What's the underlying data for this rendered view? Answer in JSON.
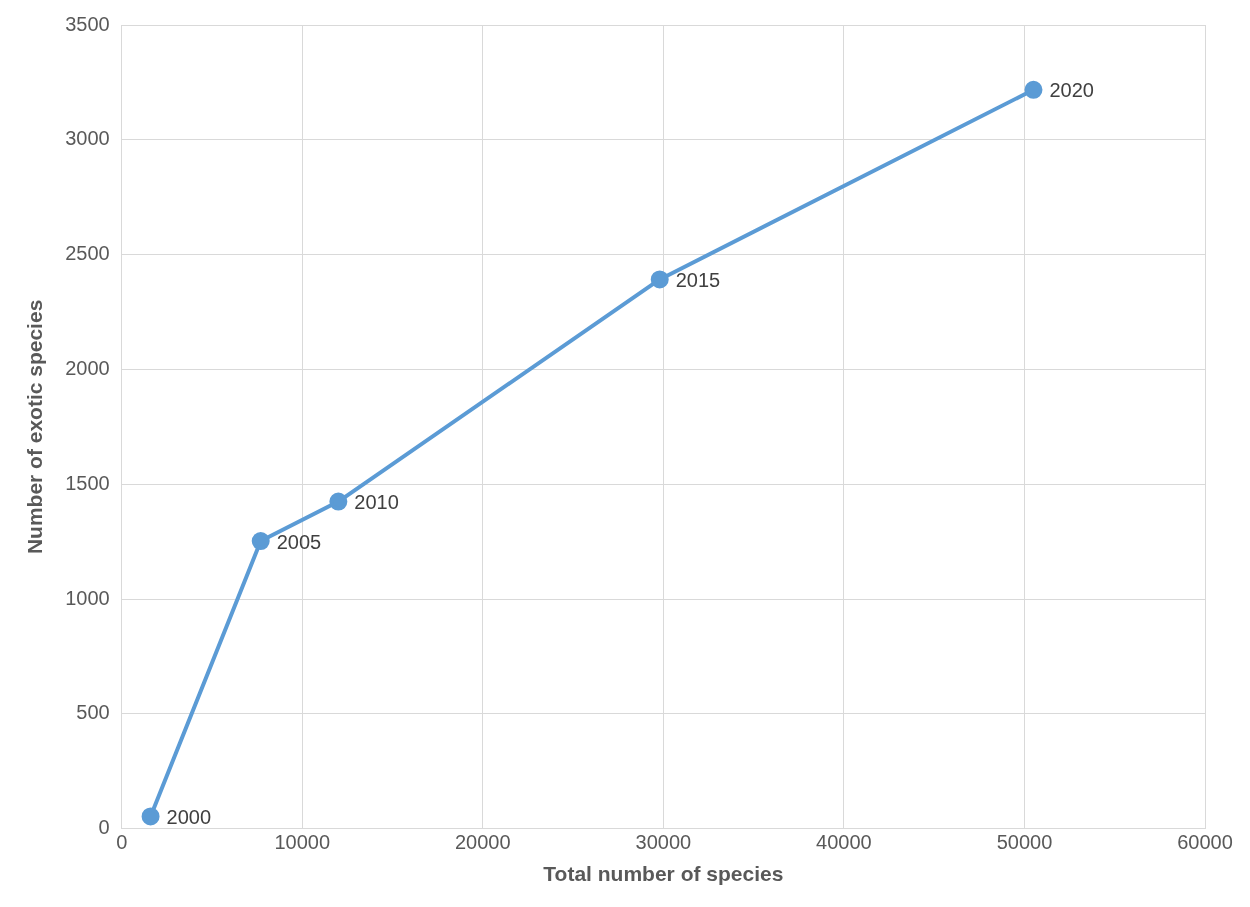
{
  "chart_data": {
    "type": "line",
    "xlabel": "Total number of species",
    "ylabel": "Number of exotic species",
    "x": [
      1600,
      7700,
      12000,
      29800,
      50500
    ],
    "series": [
      {
        "color": "#5b9bd5",
        "values": [
          54,
          1253,
          1425,
          2392,
          3218
        ]
      }
    ],
    "xlim": [
      0,
      60000
    ],
    "xticks": [
      0,
      10000,
      20000,
      30000,
      40000,
      50000,
      60000
    ],
    "ylim": [
      0,
      3500
    ],
    "yticks": [
      0,
      500,
      1000,
      1500,
      2000,
      2500,
      3000,
      3500
    ],
    "grid": true,
    "legend": false,
    "marker": "circle",
    "line_style": "solid",
    "annotations": [
      {
        "text": "2000",
        "x": 1600,
        "y": 54
      },
      {
        "text": "2005",
        "x": 7700,
        "y": 1253
      },
      {
        "text": "2010",
        "x": 12000,
        "y": 1425
      },
      {
        "text": "2015",
        "x": 29800,
        "y": 2392
      },
      {
        "text": "2020",
        "x": 50500,
        "y": 3218
      }
    ]
  }
}
